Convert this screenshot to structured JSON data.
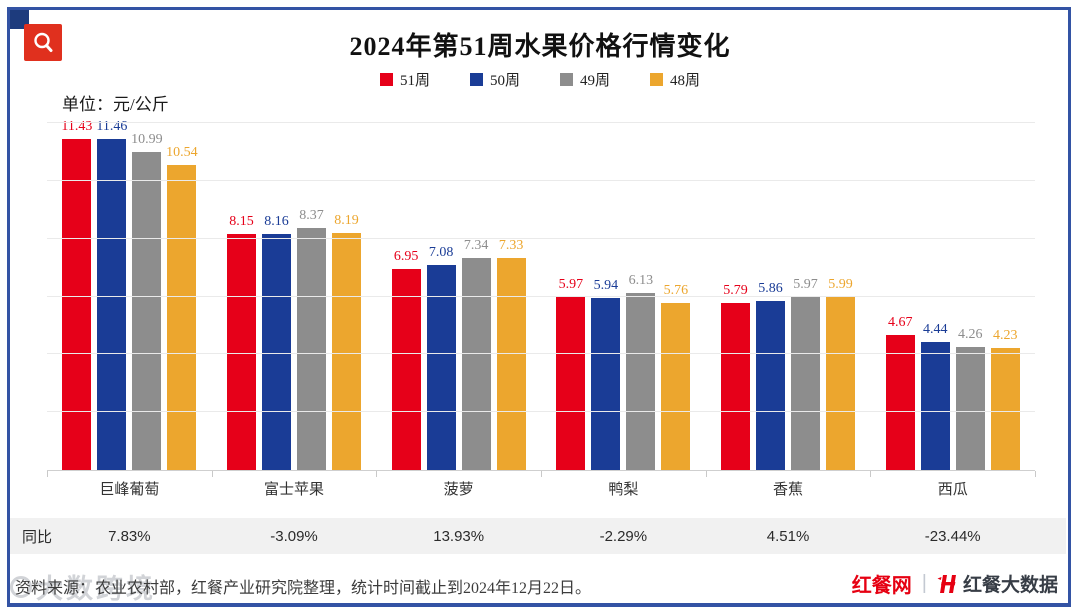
{
  "page": {
    "title": "2024年第51周水果价格行情变化",
    "unit_label": "单位：元/公斤",
    "footer_source": "资料来源：农业农村部，红餐产业研究院整理，统计时间截止到2024年12月22日。",
    "watermark_text": "大数跨境",
    "brand_left": "红餐网",
    "brand_divider": "|",
    "brand_right": "红餐大数据"
  },
  "colors": {
    "frame_blue": "#3353a4",
    "corner_navy": "#1d3b7d",
    "icon_red": "#e0301e",
    "brand_red": "#e60012",
    "yoy_row_bg": "#f1f1f1",
    "gridline": "#eaeaea"
  },
  "chart_data": {
    "type": "bar",
    "title": "2024年第51周水果价格行情变化",
    "unit": "元/公斤",
    "categories": [
      "巨峰葡萄",
      "富士苹果",
      "菠萝",
      "鸭梨",
      "香蕉",
      "西瓜"
    ],
    "series": [
      {
        "name": "51周",
        "color": "#e60019",
        "values": [
          11.43,
          8.15,
          6.95,
          5.97,
          5.79,
          4.67
        ]
      },
      {
        "name": "50周",
        "color": "#1a3c96",
        "values": [
          11.46,
          8.16,
          7.08,
          5.94,
          5.86,
          4.44
        ]
      },
      {
        "name": "49周",
        "color": "#8d8d8d",
        "values": [
          10.99,
          8.37,
          7.34,
          6.13,
          5.97,
          4.26
        ]
      },
      {
        "name": "48周",
        "color": "#eca62e",
        "values": [
          10.54,
          8.19,
          7.33,
          5.76,
          5.99,
          4.23
        ]
      }
    ],
    "ylim": [
      0,
      12
    ],
    "gridline_step": 2,
    "grid": true,
    "legend_position": "top",
    "xlabel": "",
    "ylabel": "元/公斤",
    "yoy_row": {
      "label": "同比",
      "values": [
        "7.83%",
        "-3.09%",
        "13.93%",
        "-2.29%",
        "4.51%",
        "-23.44%"
      ]
    }
  }
}
